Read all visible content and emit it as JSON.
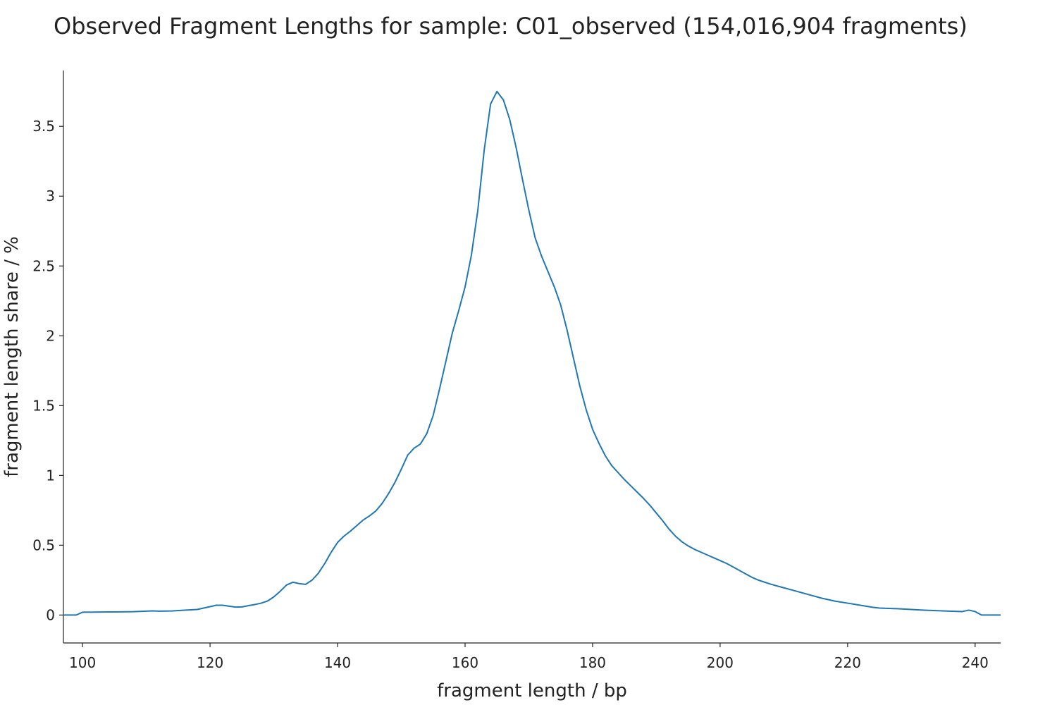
{
  "chart_data": {
    "type": "line",
    "title": "Observed Fragment Lengths for sample: C01_observed (154,016,904 fragments)",
    "xlabel": "fragment length / bp",
    "ylabel": "fragment length share / %",
    "xlim": [
      97,
      244
    ],
    "ylim": [
      -0.2,
      3.9
    ],
    "x_ticks": [
      100,
      120,
      140,
      160,
      180,
      200,
      220,
      240
    ],
    "x_tick_labels": [
      "100",
      "120",
      "140",
      "160",
      "180",
      "200",
      "220",
      "240"
    ],
    "y_ticks": [
      0,
      0.5,
      1,
      1.5,
      2,
      2.5,
      3,
      3.5
    ],
    "y_tick_labels": [
      "0",
      "0.5",
      "1",
      "1.5",
      "2",
      "2.5",
      "3",
      "3.5"
    ],
    "grid": false,
    "series": [
      {
        "color": "#1f77b4",
        "x": [
          97,
          99,
          100,
          102,
          104,
          106,
          108,
          110,
          111,
          112,
          114,
          116,
          118,
          119,
          120,
          121,
          122,
          123,
          124,
          125,
          126,
          127,
          128,
          129,
          130,
          131,
          132,
          133,
          134,
          135,
          136,
          137,
          138,
          139,
          140,
          141,
          142,
          143,
          144,
          145,
          146,
          147,
          148,
          149,
          150,
          151,
          152,
          153,
          154,
          155,
          156,
          157,
          158,
          159,
          160,
          161,
          162,
          163,
          164,
          165,
          166,
          167,
          168,
          169,
          170,
          171,
          172,
          173,
          174,
          175,
          176,
          177,
          178,
          179,
          180,
          181,
          182,
          183,
          184,
          185,
          186,
          187,
          188,
          189,
          190,
          191,
          192,
          193,
          194,
          195,
          196,
          197,
          198,
          199,
          200,
          201,
          202,
          203,
          204,
          205,
          206,
          208,
          210,
          212,
          214,
          216,
          218,
          220,
          222,
          224,
          225,
          228,
          232,
          236,
          238,
          239,
          240,
          241,
          242,
          243,
          244
        ],
        "y": [
          0,
          0,
          0.02,
          0.021,
          0.022,
          0.023,
          0.024,
          0.028,
          0.03,
          0.028,
          0.029,
          0.035,
          0.04,
          0.05,
          0.06,
          0.07,
          0.07,
          0.063,
          0.057,
          0.058,
          0.067,
          0.075,
          0.085,
          0.1,
          0.13,
          0.17,
          0.215,
          0.235,
          0.225,
          0.22,
          0.25,
          0.3,
          0.37,
          0.45,
          0.52,
          0.565,
          0.6,
          0.64,
          0.68,
          0.71,
          0.745,
          0.8,
          0.87,
          0.95,
          1.045,
          1.145,
          1.195,
          1.225,
          1.3,
          1.43,
          1.62,
          1.82,
          2.02,
          2.18,
          2.35,
          2.58,
          2.9,
          3.33,
          3.66,
          3.75,
          3.69,
          3.55,
          3.35,
          3.12,
          2.9,
          2.7,
          2.57,
          2.46,
          2.35,
          2.22,
          2.04,
          1.84,
          1.64,
          1.47,
          1.33,
          1.23,
          1.14,
          1.07,
          1.02,
          0.97,
          0.925,
          0.88,
          0.835,
          0.785,
          0.73,
          0.675,
          0.615,
          0.565,
          0.525,
          0.495,
          0.47,
          0.45,
          0.43,
          0.41,
          0.39,
          0.37,
          0.345,
          0.32,
          0.295,
          0.27,
          0.25,
          0.22,
          0.195,
          0.17,
          0.145,
          0.12,
          0.1,
          0.085,
          0.07,
          0.055,
          0.05,
          0.045,
          0.035,
          0.028,
          0.025,
          0.035,
          0.025,
          0,
          0,
          0,
          0
        ]
      }
    ]
  }
}
